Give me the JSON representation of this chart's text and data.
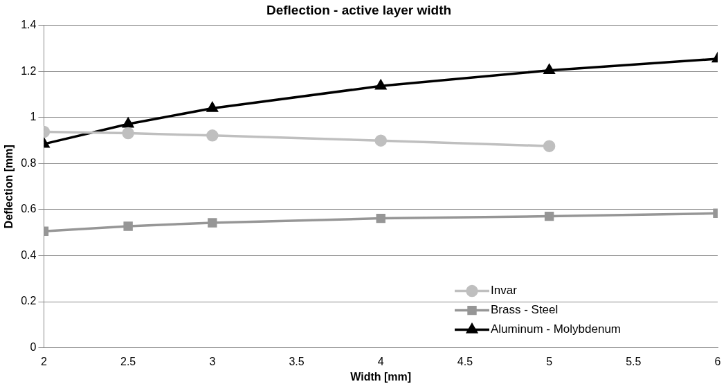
{
  "chart_data": {
    "type": "line",
    "title": "Deflection - active layer width",
    "xlabel": "Width [mm]",
    "ylabel": "Deflection [mm]",
    "xlim": [
      2,
      6
    ],
    "xticks": [
      2,
      2.5,
      3,
      3.5,
      4,
      4.5,
      5,
      5.5,
      6
    ],
    "ylim": [
      0,
      1.4
    ],
    "yticks": [
      0,
      0.2,
      0.4,
      0.6,
      0.8,
      1,
      1.2,
      1.4
    ],
    "grid": "y",
    "legend": "bottom right",
    "line_style": "solid",
    "series": [
      {
        "name": "Invar",
        "color": "#bfbfbf",
        "marker": "circle",
        "x": [
          2,
          2.5,
          3,
          4,
          5
        ],
        "values": [
          0.938,
          0.932,
          0.922,
          0.9,
          0.876
        ]
      },
      {
        "name": "Brass - Steel",
        "color": "#969696",
        "marker": "square",
        "x": [
          2,
          2.5,
          3,
          4,
          5,
          6
        ],
        "values": [
          0.506,
          0.528,
          0.543,
          0.562,
          0.571,
          0.584
        ]
      },
      {
        "name": "Aluminum - Molybdenum",
        "color": "#000000",
        "marker": "triangle",
        "x": [
          2,
          2.5,
          3,
          4,
          5,
          6
        ],
        "values": [
          0.885,
          0.972,
          1.04,
          1.137,
          1.205,
          1.255
        ]
      }
    ]
  }
}
